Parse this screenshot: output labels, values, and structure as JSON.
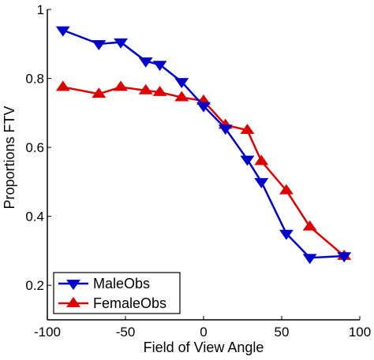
{
  "chart_data": {
    "type": "line",
    "xlabel": "Field of View Angle",
    "ylabel": "Proportions FTV",
    "xlim": [
      -100,
      100
    ],
    "ylim": [
      0.1,
      1.0
    ],
    "xticks": [
      "-100",
      "-50",
      "0",
      "50",
      "100"
    ],
    "yticks": [
      "0.2",
      "0.4",
      "0.6",
      "0.8",
      "1"
    ],
    "xtick_values": [
      -100,
      -50,
      0,
      50,
      100
    ],
    "ytick_values": [
      0.2,
      0.4,
      0.6,
      0.8,
      1.0
    ],
    "grid": false,
    "legend_position": "bottom-left",
    "series": [
      {
        "name": "MaleObs",
        "color": "#0000cc",
        "marker": "triangle-down",
        "x": [
          -90,
          -67,
          -53,
          -37,
          -28,
          -14,
          0,
          14,
          28,
          37,
          53,
          68,
          90
        ],
        "y": [
          0.94,
          0.9,
          0.905,
          0.85,
          0.84,
          0.79,
          0.72,
          0.655,
          0.565,
          0.5,
          0.35,
          0.28,
          0.285
        ]
      },
      {
        "name": "FemaleObs",
        "color": "#dd0000",
        "marker": "triangle-up",
        "x": [
          -90,
          -67,
          -53,
          -37,
          -28,
          -14,
          0,
          14,
          28,
          37,
          53,
          68,
          90
        ],
        "y": [
          0.775,
          0.755,
          0.775,
          0.765,
          0.76,
          0.745,
          0.735,
          0.665,
          0.65,
          0.56,
          0.475,
          0.37,
          0.285
        ]
      }
    ]
  }
}
